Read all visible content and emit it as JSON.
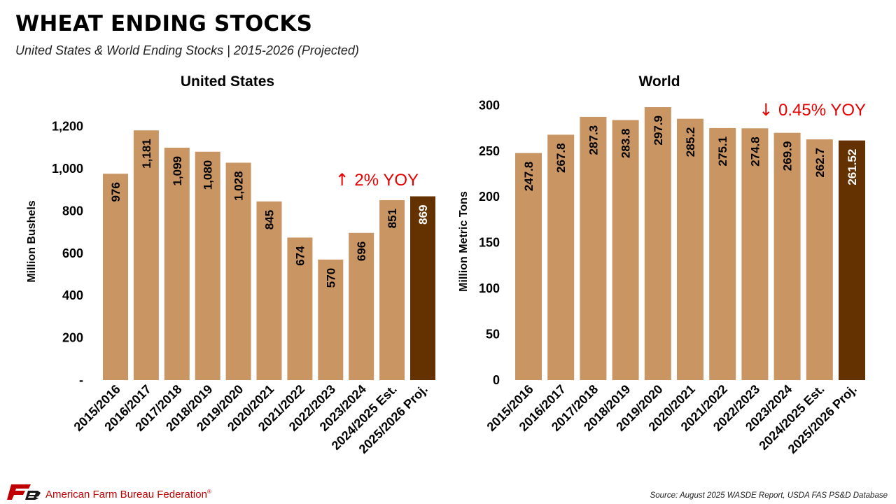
{
  "title": "WHEAT ENDING STOCKS",
  "subtitle": "United States & World Ending Stocks | 2015-2026 (Projected)",
  "colors": {
    "bar": "#c99563",
    "highlight": "#643200",
    "annotation": "#e60000",
    "brand_red": "#c00000"
  },
  "chart_data": [
    {
      "type": "bar",
      "title": "United States",
      "ylabel": "Million Bushels",
      "xlabel": "",
      "ylim": [
        0,
        1200
      ],
      "yticks": [
        0,
        200,
        400,
        600,
        800,
        1000,
        1200
      ],
      "ytick_labels": [
        "-",
        "200",
        "400",
        "600",
        "800",
        "1,000",
        "1,200"
      ],
      "grid": false,
      "categories": [
        "2015/2016",
        "2016/2017",
        "2017/2018",
        "2018/2019",
        "2019/2020",
        "2020/2021",
        "2021/2022",
        "2022/2023",
        "2023/2024",
        "2024/2025 Est.",
        "2025/2026 Proj."
      ],
      "values": [
        976,
        1181,
        1099,
        1080,
        1028,
        845,
        674,
        570,
        696,
        851,
        869
      ],
      "value_labels": [
        "976",
        "1,181",
        "1,099",
        "1,080",
        "1,028",
        "845",
        "674",
        "570",
        "696",
        "851",
        "869"
      ],
      "highlight_index": 10,
      "annotation": {
        "arrow": "↑",
        "text": "2% YOY"
      }
    },
    {
      "type": "bar",
      "title": "World",
      "ylabel": "Million Metric Tons",
      "xlabel": "",
      "ylim": [
        0,
        300
      ],
      "yticks": [
        0,
        50,
        100,
        150,
        200,
        250,
        300
      ],
      "ytick_labels": [
        "0",
        "50",
        "100",
        "150",
        "200",
        "250",
        "300"
      ],
      "grid": false,
      "categories": [
        "2015/2016",
        "2016/2017",
        "2017/2018",
        "2018/2019",
        "2019/2020",
        "2020/2021",
        "2021/2022",
        "2022/2023",
        "2023/2024",
        "2024/2025 Est.",
        "2025/2026 Proj."
      ],
      "values": [
        247.8,
        267.8,
        287.3,
        283.8,
        297.9,
        285.2,
        275.1,
        274.8,
        269.9,
        262.7,
        261.52
      ],
      "value_labels": [
        "247.8",
        "267.8",
        "287.3",
        "283.8",
        "297.9",
        "285.2",
        "275.1",
        "274.8",
        "269.9",
        "262.7",
        "261.52"
      ],
      "highlight_index": 10,
      "annotation": {
        "arrow": "↓",
        "text": "0.45% YOY"
      }
    }
  ],
  "footer": {
    "organization": "American Farm Bureau Federation",
    "registered_mark": "®",
    "source": "Source: August 2025 WASDE Report, USDA FAS PS&D Database"
  }
}
